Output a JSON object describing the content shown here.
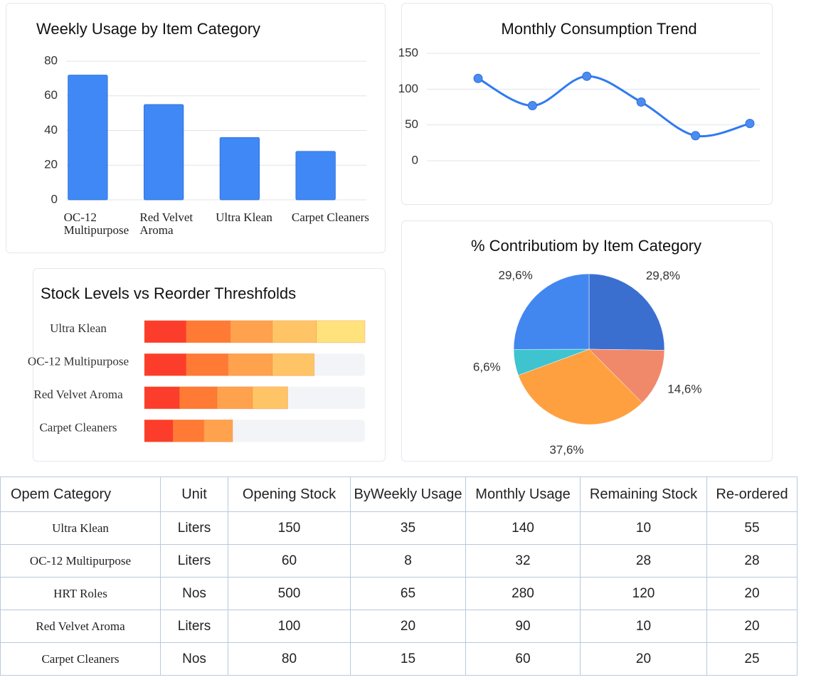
{
  "chart_data": [
    {
      "type": "bar",
      "title": "Weekly Usage by Item Category",
      "categories": [
        "OC-12 Multipurpose",
        "Red Velvet Aroma",
        "Ultra Klean",
        "Carpet Cleaners"
      ],
      "values": [
        72,
        55,
        36,
        28
      ],
      "color": "#3f88f5",
      "ylim": [
        0,
        80
      ],
      "yticks": [
        0,
        20,
        40,
        60,
        80
      ],
      "grid": true
    },
    {
      "type": "line",
      "title": "Monthly Consumption Trend",
      "categories": [
        null,
        null,
        null,
        null,
        null,
        null
      ],
      "values": [
        115,
        77,
        118,
        82,
        35,
        52
      ],
      "color": "#2f7bf0",
      "ylim": [
        0,
        150
      ],
      "yticks": [
        0,
        50,
        100,
        150
      ],
      "grid": true,
      "smooth": true
    },
    {
      "type": "bar",
      "horizontal": true,
      "stacked": true,
      "title": "Stock Levels vs Reorder Threshfolds",
      "categories": [
        "Ultra Klean",
        "OC-12 Multipurpose",
        "Red Velvet Aroma",
        "Carpet Cleaners"
      ],
      "xlim": [
        0,
        100
      ],
      "series": [
        {
          "color": "#fd3d2b",
          "values": [
            19,
            19,
            16,
            13
          ]
        },
        {
          "color": "#ff7a35",
          "values": [
            20,
            19,
            17,
            14
          ]
        },
        {
          "color": "#ffa24e",
          "values": [
            19,
            20,
            16,
            13
          ]
        },
        {
          "color": "#ffc466",
          "values": [
            20,
            19,
            16,
            null
          ]
        },
        {
          "color": "#ffe27c",
          "values": [
            22,
            null,
            null,
            null
          ]
        }
      ]
    },
    {
      "type": "pie",
      "title": "% Contributiom by Item Category",
      "values": [
        29.8,
        14.6,
        37.6,
        6.6,
        29.6
      ],
      "value_labels": [
        "29,8%",
        "14,6%",
        "37,6%",
        "6,6%",
        "29,6%"
      ],
      "colors": [
        "#3a6fd0",
        "#f0896a",
        "#ffa040",
        "#3fc3cf",
        "#4286f0"
      ]
    }
  ],
  "table": {
    "header": [
      "Opem Category",
      "Unit",
      "Opening Stock",
      "ByWeekly Usage",
      "Monthly Usage",
      "Remaining Stock",
      "Re-ordered"
    ],
    "rows": [
      [
        "Ultra Klean",
        "Liters",
        150,
        35,
        140,
        10,
        55
      ],
      [
        "OC-12 Multipurpose",
        "Liters",
        60,
        8,
        32,
        28,
        28
      ],
      [
        "HRT Roles",
        "Nos",
        500,
        65,
        280,
        120,
        20
      ],
      [
        "Red Velvet Aroma",
        "Liters",
        100,
        20,
        90,
        10,
        20
      ],
      [
        "Carpet Cleaners",
        "Nos",
        80,
        15,
        60,
        20,
        25
      ]
    ]
  }
}
